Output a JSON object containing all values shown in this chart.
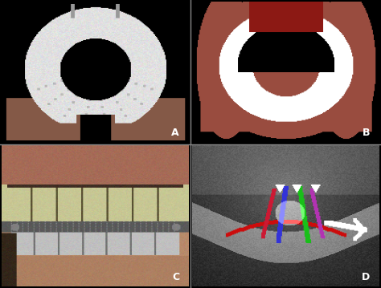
{
  "figure_bg": "#000000",
  "panel_bg_color": "#000000",
  "label_color": "#ffffff",
  "label_fontsize": 9,
  "label_fontweight": "bold",
  "labels": [
    "A",
    "B",
    "C",
    "D"
  ],
  "divider_color": "#888888",
  "divider_linewidth": 1.0
}
